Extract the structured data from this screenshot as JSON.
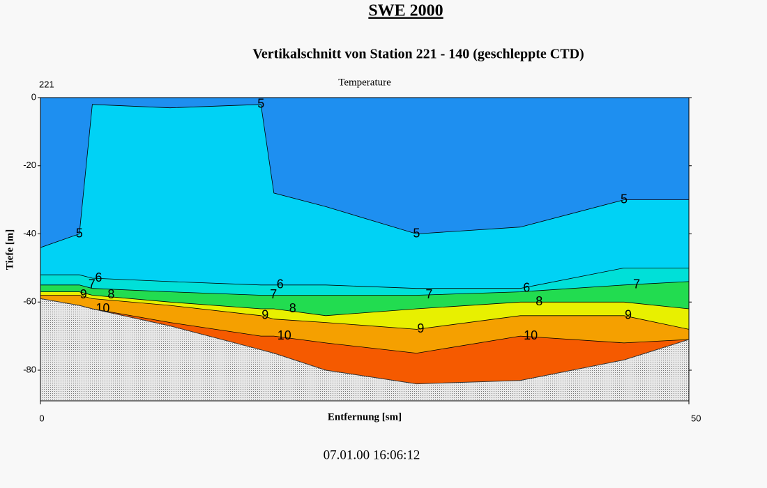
{
  "chart_data": {
    "type": "contour",
    "title": "SWE 2000",
    "subtitle": "Vertikalschnitt von Station 221 - 140 (geschleppte CTD)",
    "station": "221",
    "panel_title": "Temperature",
    "xlabel": "Entfernung [sm]",
    "ylabel": "Tiefe [m]",
    "timestamp": "07.01.00 16:06:12",
    "xlim": [
      0,
      50
    ],
    "ylim": [
      0,
      -89
    ],
    "xticks": [
      0,
      50
    ],
    "yticks": [
      0,
      -20,
      -40,
      -60,
      -80
    ],
    "surface_color": "#1e8ff0",
    "x": [
      0,
      3,
      4,
      10,
      17,
      18,
      22,
      29,
      37,
      45,
      50
    ],
    "bottom": [
      -59,
      -61,
      -62,
      -67,
      -74,
      -75,
      -80,
      -84,
      -83,
      -77,
      -71
    ],
    "series": [
      {
        "name": "5",
        "color": "#00d2f5",
        "values": [
          -44,
          -40,
          -2,
          -3,
          -2,
          -28,
          -32,
          -40,
          -38,
          -30,
          -30
        ]
      },
      {
        "name": "6",
        "color": "#00e0d8",
        "values": [
          -52,
          -52,
          -53,
          -54,
          -55,
          -55,
          -55,
          -56,
          -56,
          -50,
          -50
        ]
      },
      {
        "name": "7",
        "color": "#22dc50",
        "values": [
          -55,
          -55,
          -56,
          -57,
          -58,
          -58,
          -58,
          -58,
          -57,
          -55,
          -54
        ]
      },
      {
        "name": "8",
        "color": "#e8f000",
        "values": [
          -57,
          -57,
          -58,
          -60,
          -62,
          -62,
          -64,
          -62,
          -60,
          -60,
          -62
        ]
      },
      {
        "name": "9",
        "color": "#f5a000",
        "values": [
          -58,
          -58,
          -59,
          -61,
          -64,
          -65,
          -66,
          -68,
          -64,
          -64,
          -68
        ]
      },
      {
        "name": "10",
        "color": "#f55a00",
        "values": [
          -60,
          -61,
          -62,
          -66,
          -70,
          -70,
          -72,
          -75,
          -70,
          -72,
          -71
        ]
      }
    ]
  }
}
